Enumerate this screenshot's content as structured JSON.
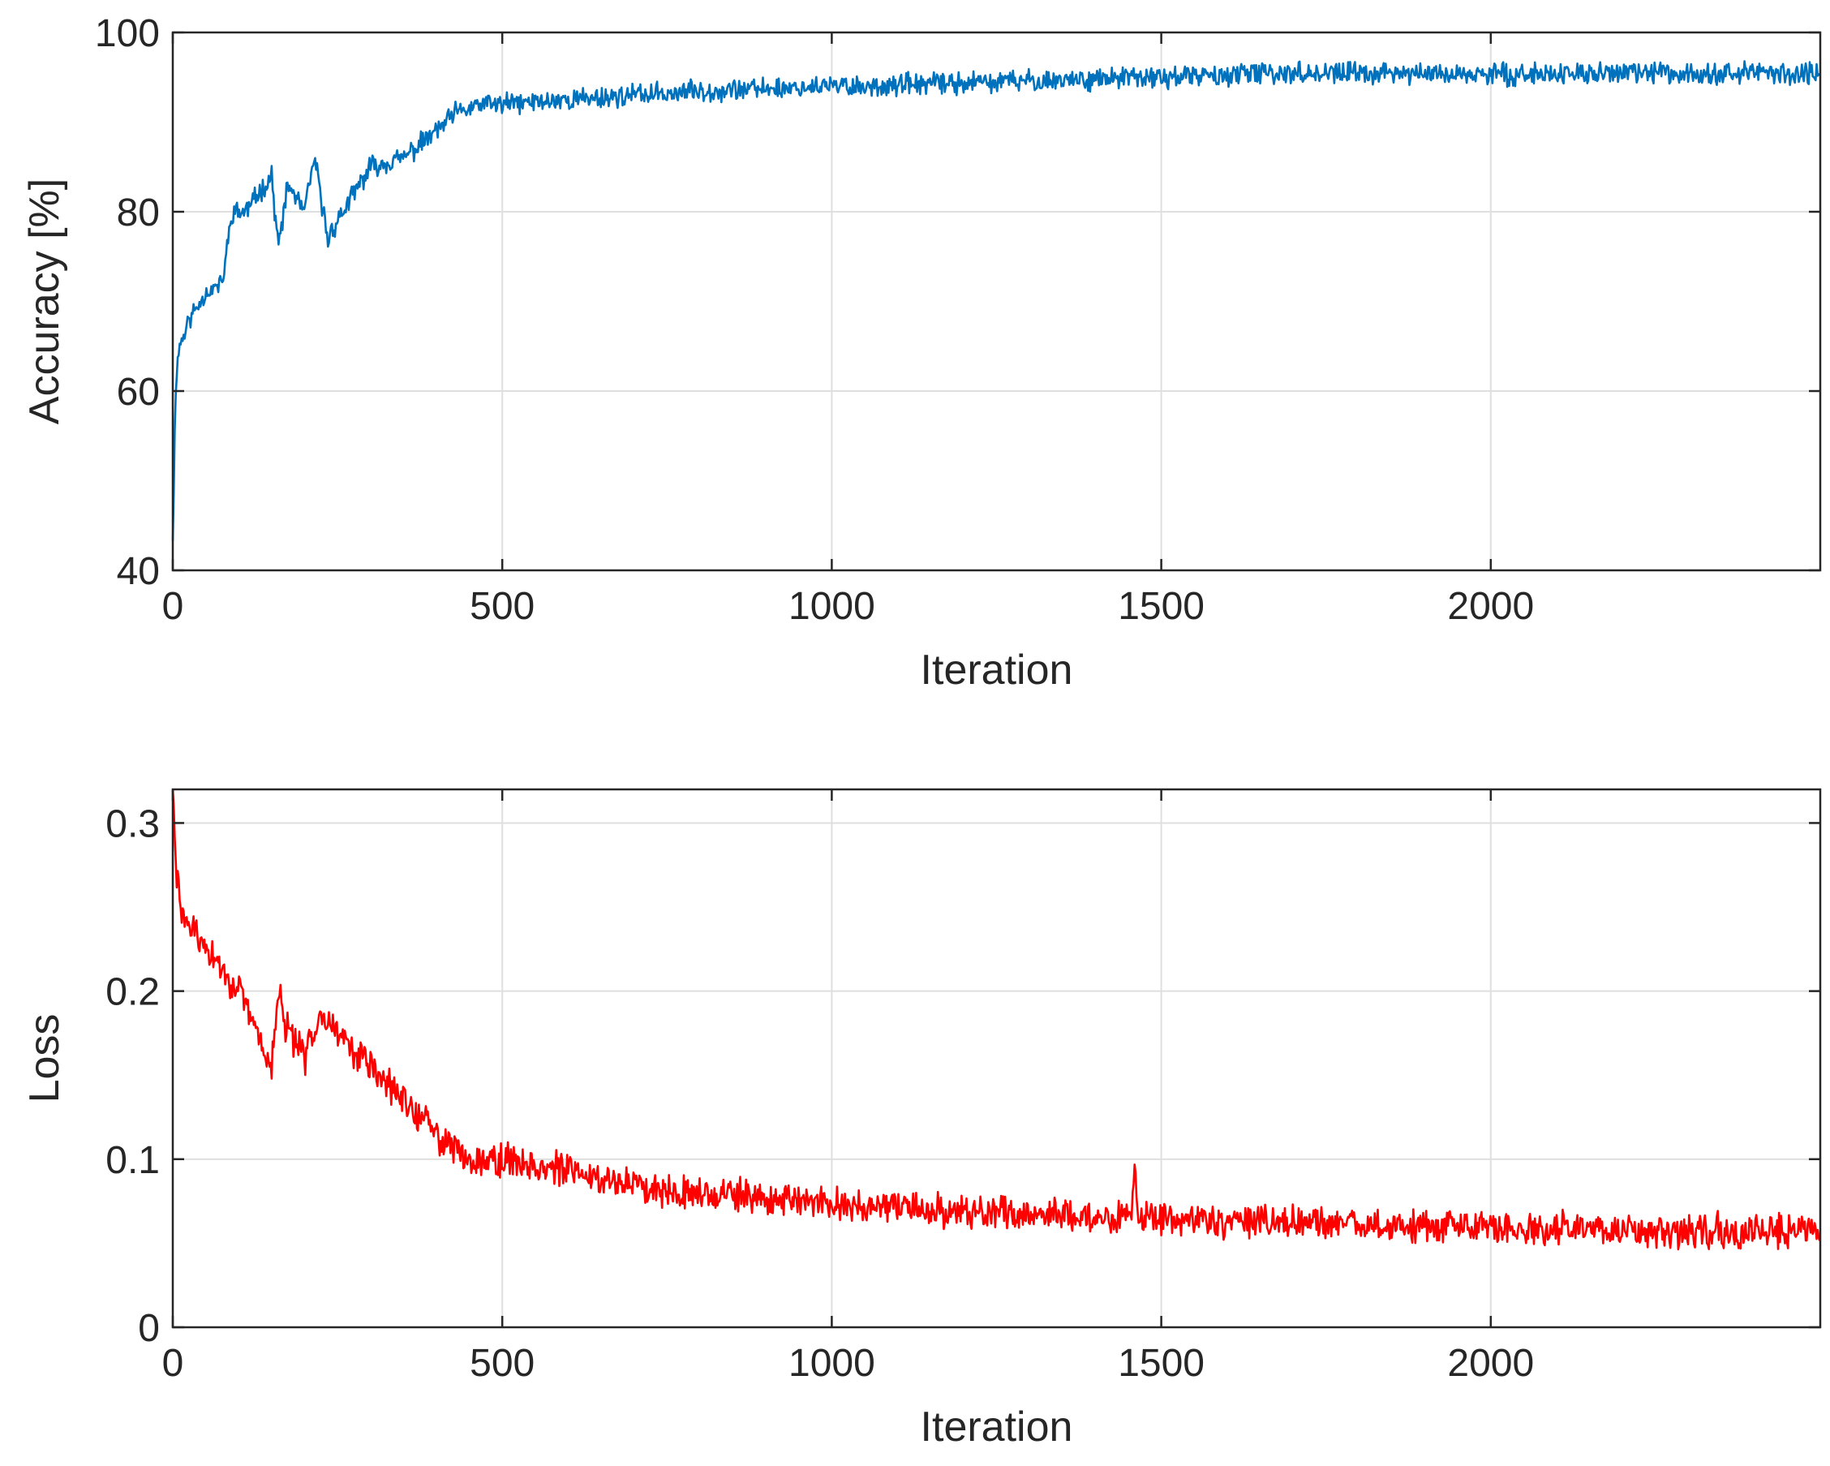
{
  "chart_data": [
    {
      "type": "line",
      "xlabel": "Iteration",
      "ylabel": "Accuracy [%]",
      "xlim": [
        0,
        2500
      ],
      "ylim": [
        40,
        100
      ],
      "xticks": [
        "0",
        "500",
        "1000",
        "1500",
        "2000"
      ],
      "yticks": [
        "40",
        "60",
        "80",
        "100"
      ],
      "grid": true,
      "color": "#0072BD",
      "series": [
        {
          "x": [
            0,
            5,
            10,
            25,
            50,
            75,
            90,
            110,
            130,
            150,
            160,
            175,
            200,
            215,
            235,
            250,
            275,
            300,
            350,
            400,
            430,
            470,
            500,
            600,
            700,
            800,
            1000,
            1050,
            1250,
            1500,
            1700,
            2000,
            2250,
            2500
          ],
          "y": [
            44,
            62,
            65,
            68,
            71,
            72,
            80,
            80,
            82,
            84,
            76,
            83,
            80,
            86,
            77,
            79,
            82,
            85,
            86,
            89,
            91,
            92,
            92,
            92.5,
            93,
            93.5,
            94,
            94,
            94.5,
            95,
            95.5,
            95.3,
            95.5,
            95.5
          ]
        }
      ]
    },
    {
      "type": "line",
      "xlabel": "Iteration",
      "ylabel": "Loss",
      "xlim": [
        0,
        2500
      ],
      "ylim": [
        0,
        0.32
      ],
      "xticks": [
        "0",
        "500",
        "1000",
        "1500",
        "2000"
      ],
      "yticks": [
        "0",
        "0.1",
        "0.2",
        "0.3"
      ],
      "grid": true,
      "color": "#FF0000",
      "series": [
        {
          "x": [
            0,
            5,
            15,
            50,
            100,
            150,
            160,
            170,
            200,
            225,
            250,
            300,
            350,
            400,
            450,
            500,
            600,
            700,
            800,
            1000,
            1200,
            1455,
            1460,
            1465,
            1500,
            2000,
            2500
          ],
          "y": [
            0.32,
            0.27,
            0.245,
            0.225,
            0.2,
            0.155,
            0.2,
            0.18,
            0.16,
            0.19,
            0.175,
            0.155,
            0.135,
            0.115,
            0.1,
            0.1,
            0.093,
            0.085,
            0.08,
            0.073,
            0.069,
            0.065,
            0.095,
            0.065,
            0.064,
            0.059,
            0.057
          ]
        }
      ]
    }
  ]
}
